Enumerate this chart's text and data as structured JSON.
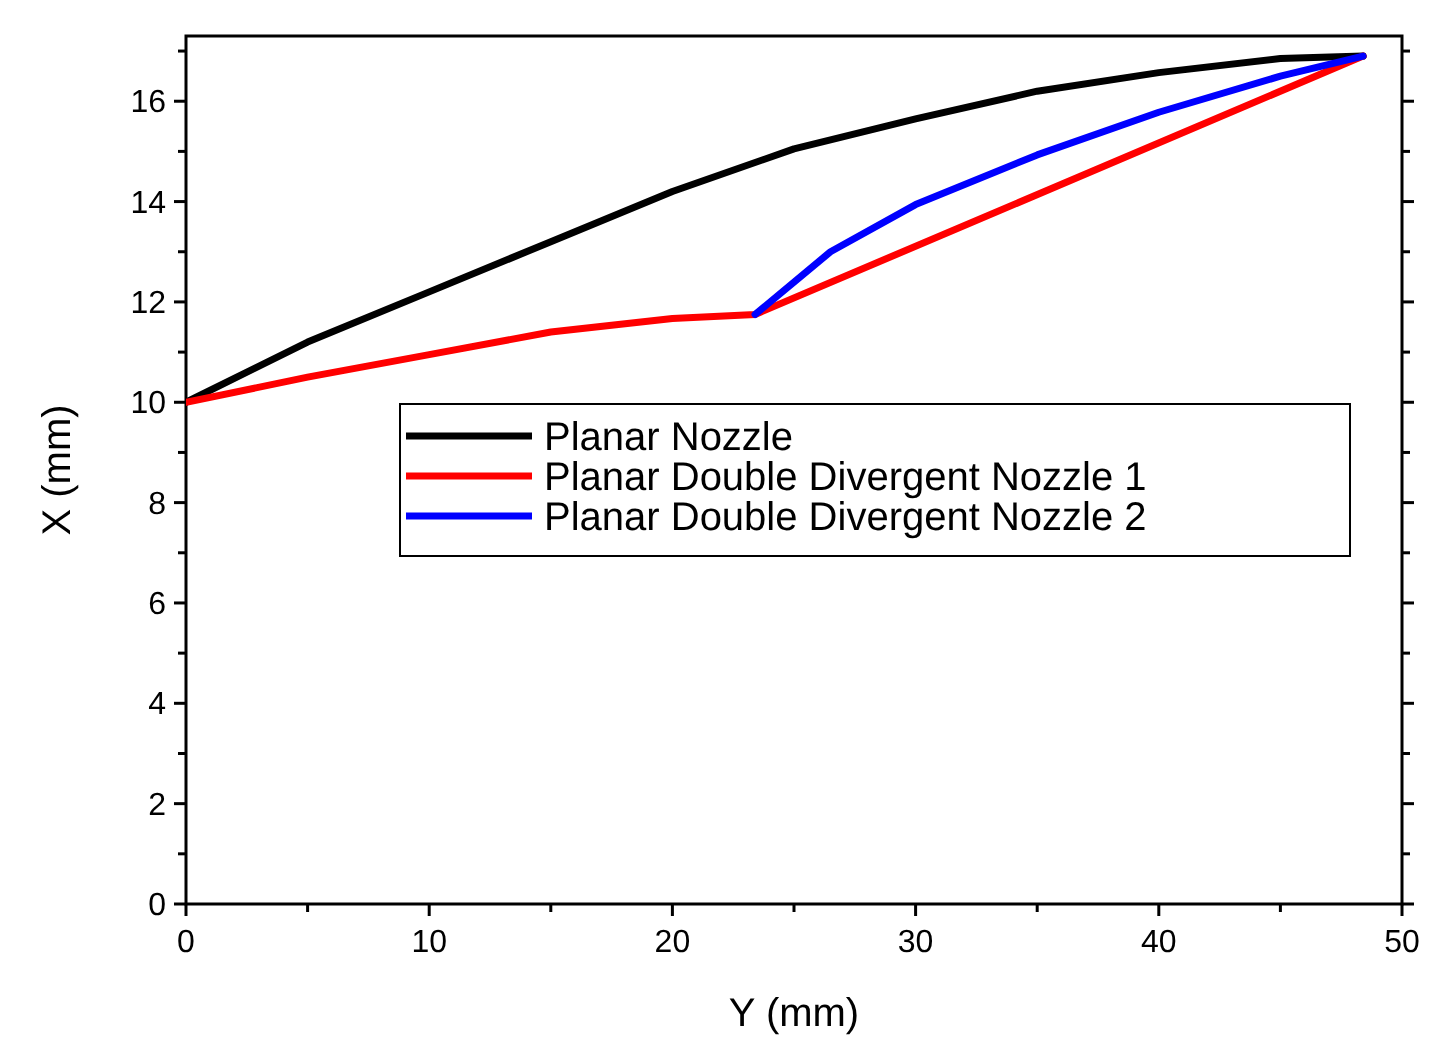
{
  "chart_data": {
    "type": "line",
    "xlabel": "Y (mm)",
    "ylabel": "X (mm)",
    "xlim": [
      0,
      50
    ],
    "ylim": [
      0,
      17.3
    ],
    "xticks": [
      0,
      {
        "value": 5,
        "label": null
      },
      10,
      {
        "value": 15,
        "label": null
      },
      20,
      {
        "value": 25,
        "label": null
      },
      30,
      {
        "value": 35,
        "label": null
      },
      40,
      {
        "value": 45,
        "label": null
      },
      50
    ],
    "yticks": [
      0,
      {
        "value": 1,
        "label": null
      },
      2,
      {
        "value": 3,
        "label": null
      },
      4,
      {
        "value": 5,
        "label": null
      },
      6,
      {
        "value": 7,
        "label": null
      },
      8,
      {
        "value": 9,
        "label": null
      },
      10,
      {
        "value": 11,
        "label": null
      },
      12,
      {
        "value": 13,
        "label": null
      },
      14,
      {
        "value": 15,
        "label": null
      },
      16,
      {
        "value": 17,
        "label": null
      }
    ],
    "grid": false,
    "legend": "center right",
    "line_style": "solid",
    "marker": "none",
    "series": [
      {
        "name": "Planar Nozzle",
        "color": "#000000",
        "x": [
          0,
          5,
          10,
          15,
          20,
          25,
          30,
          35,
          40,
          45,
          48.4
        ],
        "values": [
          10,
          11.2,
          12.2,
          13.2,
          14.2,
          15.05,
          15.65,
          16.2,
          16.57,
          16.85,
          16.9
        ]
      },
      {
        "name": "Planar Double Divergent Nozzle 1",
        "color": "#ff0000",
        "x": [
          0,
          5,
          10,
          15,
          20,
          23.4,
          48.4
        ],
        "values": [
          10,
          10.5,
          10.95,
          11.4,
          11.67,
          11.75,
          16.9
        ]
      },
      {
        "name": "Planar Double Divergent Nozzle 2",
        "color": "#0000ff",
        "x": [
          23.4,
          26.5,
          30,
          35,
          40,
          45,
          48.4
        ],
        "values": [
          11.75,
          13.0,
          13.94,
          14.93,
          15.78,
          16.5,
          16.9
        ]
      }
    ]
  }
}
